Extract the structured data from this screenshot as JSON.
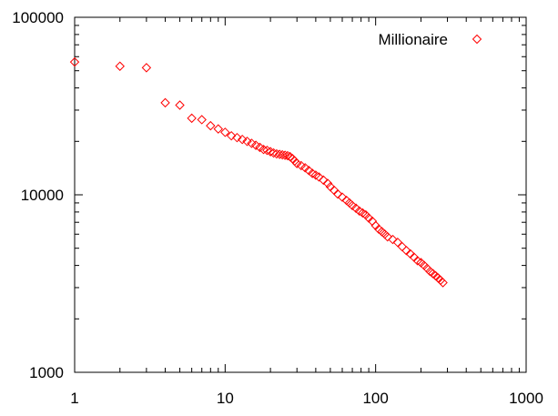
{
  "chart_data": {
    "type": "scatter",
    "title": "",
    "xlabel": "",
    "ylabel": "",
    "xscale": "log",
    "yscale": "log",
    "xlim": [
      1,
      1000
    ],
    "ylim": [
      1000,
      100000
    ],
    "grid": false,
    "legend_position": "top-right",
    "marker": "diamond",
    "x_ticks": [
      {
        "value": 1,
        "label": "1"
      },
      {
        "value": 10,
        "label": "10"
      },
      {
        "value": 100,
        "label": "100"
      },
      {
        "value": 1000,
        "label": "1000"
      }
    ],
    "y_ticks": [
      {
        "value": 1000,
        "label": "1000"
      },
      {
        "value": 10000,
        "label": "10000"
      },
      {
        "value": 100000,
        "label": "100000"
      }
    ],
    "series": [
      {
        "name": "Millionaire",
        "color": "#ff0000",
        "x": [
          1,
          2,
          3,
          4,
          5,
          6,
          7,
          8,
          9,
          10,
          11,
          12,
          13,
          14,
          15,
          16,
          17,
          18,
          19,
          20,
          21,
          22,
          23,
          24,
          25,
          26,
          27,
          28,
          29,
          30,
          32,
          34,
          36,
          38,
          40,
          42,
          45,
          48,
          50,
          53,
          56,
          60,
          64,
          67,
          70,
          74,
          78,
          82,
          86,
          90,
          95,
          100,
          105,
          110,
          115,
          120,
          130,
          140,
          150,
          160,
          170,
          180,
          190,
          200,
          210,
          220,
          230,
          240,
          250,
          260,
          270,
          280
        ],
        "y": [
          56000,
          53000,
          52000,
          33000,
          32000,
          27000,
          26500,
          24500,
          23500,
          22500,
          21500,
          21000,
          20500,
          20000,
          19500,
          19000,
          18500,
          18000,
          17800,
          17500,
          17200,
          17000,
          16900,
          16800,
          16700,
          16600,
          16400,
          16000,
          15500,
          15000,
          14600,
          14200,
          13700,
          13200,
          12900,
          12600,
          12100,
          11600,
          11100,
          10600,
          10100,
          9700,
          9300,
          9000,
          8700,
          8400,
          8100,
          7900,
          7700,
          7400,
          7100,
          6700,
          6400,
          6200,
          6000,
          5800,
          5600,
          5400,
          5100,
          4850,
          4650,
          4450,
          4250,
          4150,
          4000,
          3850,
          3700,
          3600,
          3500,
          3400,
          3300,
          3200
        ]
      }
    ]
  }
}
